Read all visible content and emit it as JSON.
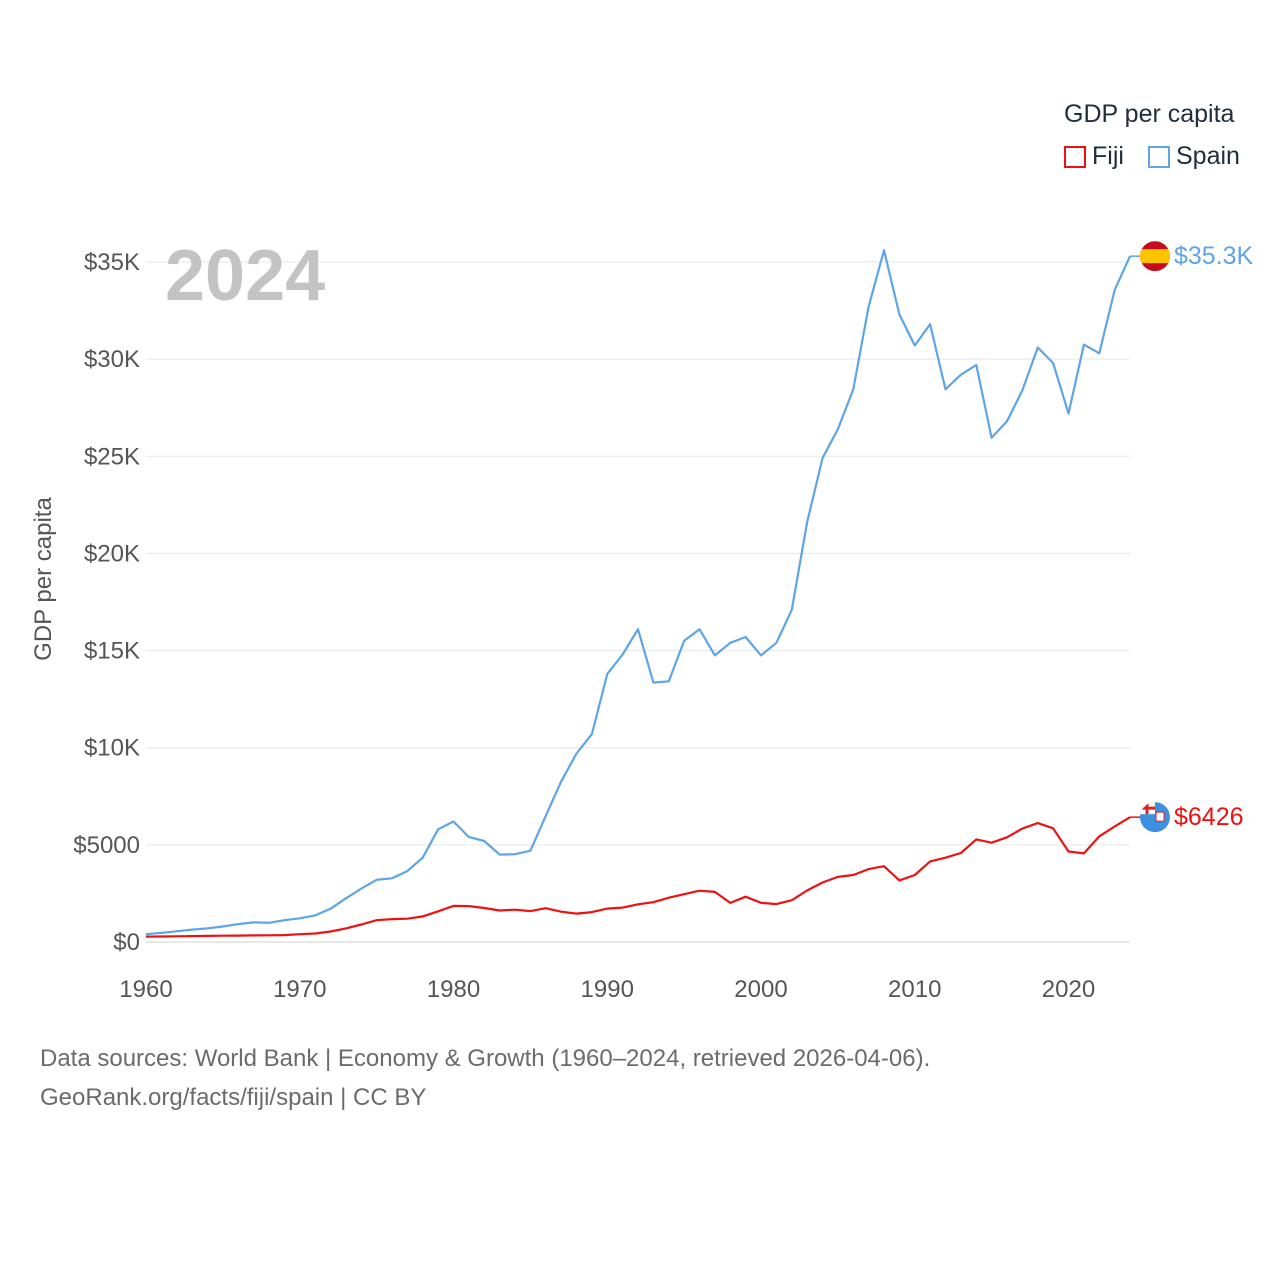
{
  "legend": {
    "title": "GDP per capita",
    "items": [
      {
        "label": "Fiji",
        "color": "#ee1111"
      },
      {
        "label": "Spain",
        "color": "#5da5e6"
      }
    ]
  },
  "footer": {
    "line1": "Data sources: World Bank | Economy & Growth (1960–2024, retrieved 2026-04-06).",
    "line2": "GeoRank.org/facts/fiji/spain | CC BY"
  },
  "chart_data": {
    "type": "line",
    "title": "GDP per capita",
    "ylabel": "GDP per capita",
    "xlabel": "",
    "year_watermark": "2024",
    "xlim": [
      1960,
      2024
    ],
    "ylim": [
      0,
      35000
    ],
    "x_ticks": [
      1960,
      1970,
      1980,
      1990,
      2000,
      2010,
      2020
    ],
    "x_tick_labels": [
      "1960",
      "1970",
      "1980",
      "1990",
      "2000",
      "2010",
      "2020"
    ],
    "y_ticks": [
      0,
      5000,
      10000,
      15000,
      20000,
      25000,
      30000,
      35000
    ],
    "y_tick_labels": [
      "$0",
      "$5000",
      "$10K",
      "$15K",
      "$20K",
      "$25K",
      "$30K",
      "$35K"
    ],
    "grid": true,
    "x": [
      1960,
      1961,
      1962,
      1963,
      1964,
      1965,
      1966,
      1967,
      1968,
      1969,
      1970,
      1971,
      1972,
      1973,
      1974,
      1975,
      1976,
      1977,
      1978,
      1979,
      1980,
      1981,
      1982,
      1983,
      1984,
      1985,
      1986,
      1987,
      1988,
      1989,
      1990,
      1991,
      1992,
      1993,
      1994,
      1995,
      1996,
      1997,
      1998,
      1999,
      2000,
      2001,
      2002,
      2003,
      2004,
      2005,
      2006,
      2007,
      2008,
      2009,
      2010,
      2011,
      2012,
      2013,
      2014,
      2015,
      2016,
      2017,
      2018,
      2019,
      2020,
      2021,
      2022,
      2023,
      2024
    ],
    "series": [
      {
        "name": "Spain",
        "color": "#5da5e6",
        "end_label": "$35.3K",
        "flag": "spain-flag",
        "values": [
          400,
          470,
          550,
          640,
          700,
          800,
          920,
          1010,
          990,
          1120,
          1220,
          1370,
          1710,
          2250,
          2750,
          3200,
          3280,
          3650,
          4350,
          5800,
          6200,
          5400,
          5200,
          4500,
          4520,
          4700,
          6500,
          8250,
          9700,
          10700,
          13800,
          14800,
          16100,
          13350,
          13420,
          15500,
          16100,
          14750,
          15400,
          15700,
          14750,
          15400,
          17100,
          21600,
          24900,
          26400,
          28450,
          32700,
          35600,
          32300,
          30700,
          31800,
          28450,
          29200,
          29700,
          25950,
          26800,
          28400,
          30600,
          29800,
          27200,
          30750,
          30300,
          33550,
          35300
        ]
      },
      {
        "name": "Fiji",
        "color": "#ee1111",
        "end_label": "$6426",
        "flag": "fiji-flag",
        "values": [
          280,
          285,
          295,
          305,
          315,
          325,
          330,
          340,
          345,
          355,
          400,
          440,
          540,
          700,
          900,
          1120,
          1180,
          1200,
          1320,
          1580,
          1860,
          1850,
          1750,
          1620,
          1660,
          1590,
          1740,
          1560,
          1460,
          1540,
          1720,
          1770,
          1940,
          2050,
          2280,
          2460,
          2640,
          2580,
          2010,
          2330,
          2020,
          1950,
          2150,
          2650,
          3060,
          3350,
          3450,
          3750,
          3900,
          3170,
          3450,
          4150,
          4340,
          4580,
          5280,
          5110,
          5390,
          5840,
          6120,
          5850,
          4660,
          4560,
          5440,
          5940,
          6426
        ]
      }
    ]
  }
}
